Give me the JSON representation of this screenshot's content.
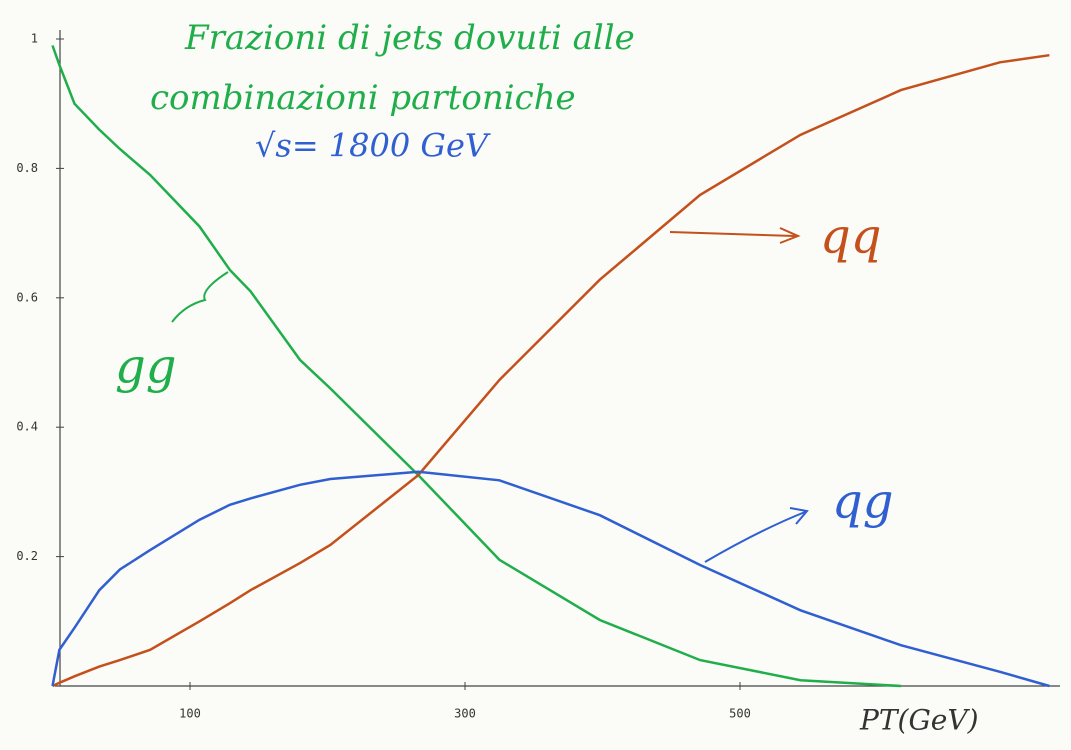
{
  "chart_data": {
    "type": "line",
    "title": [
      "Frazioni di jets dovuti alle",
      "combinazioni partoniche"
    ],
    "subtitle": "√s= 1800 GeV",
    "x_label": "PT(GeV)",
    "x": [
      0,
      5,
      16,
      34,
      49,
      71,
      107,
      129,
      144,
      180,
      202,
      266,
      325,
      398,
      471,
      544,
      617,
      689,
      725
    ],
    "series": [
      {
        "name": "gg",
        "color": "#1fae4a",
        "values": [
          0.99,
          0.96,
          0.9,
          0.86,
          0.83,
          0.79,
          0.71,
          0.643,
          0.61,
          0.504,
          0.46,
          0.326,
          0.195,
          0.102,
          0.04,
          0.009,
          0,
          null,
          null
        ]
      },
      {
        "name": "qq",
        "color": "#c4501b",
        "values": [
          0,
          0.005,
          0.015,
          0.03,
          0.04,
          0.056,
          0.1,
          0.128,
          0.148,
          0.19,
          0.218,
          0.326,
          0.473,
          0.628,
          0.759,
          0.852,
          0.921,
          0.964,
          0.975
        ]
      },
      {
        "name": "qg",
        "color": "#2f5fd0",
        "values": [
          0,
          0.056,
          0.09,
          0.148,
          0.18,
          0.21,
          0.257,
          0.28,
          0.29,
          0.311,
          0.32,
          0.331,
          0.318,
          0.264,
          0.187,
          0.117,
          0.063,
          0.022,
          0
        ]
      }
    ],
    "xlim": [
      0,
      740
    ],
    "ylim": [
      0,
      1
    ],
    "xticks": [
      100,
      300,
      500
    ],
    "yticks": [
      0.2,
      0.4,
      0.6,
      0.8,
      1
    ]
  }
}
